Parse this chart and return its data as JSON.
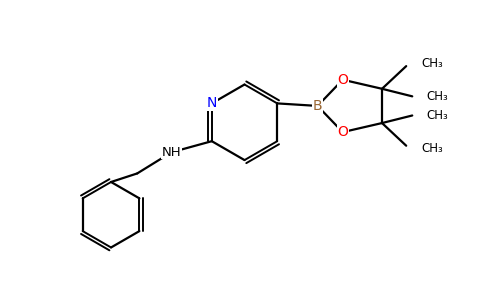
{
  "bg_color": "#ffffff",
  "bond_color": "#000000",
  "N_color": "#0000ff",
  "O_color": "#ff0000",
  "B_color": "#996633",
  "figsize": [
    4.84,
    3.0
  ],
  "dpi": 100,
  "xlim": [
    0,
    9.5
  ],
  "ylim": [
    0,
    5.9
  ]
}
